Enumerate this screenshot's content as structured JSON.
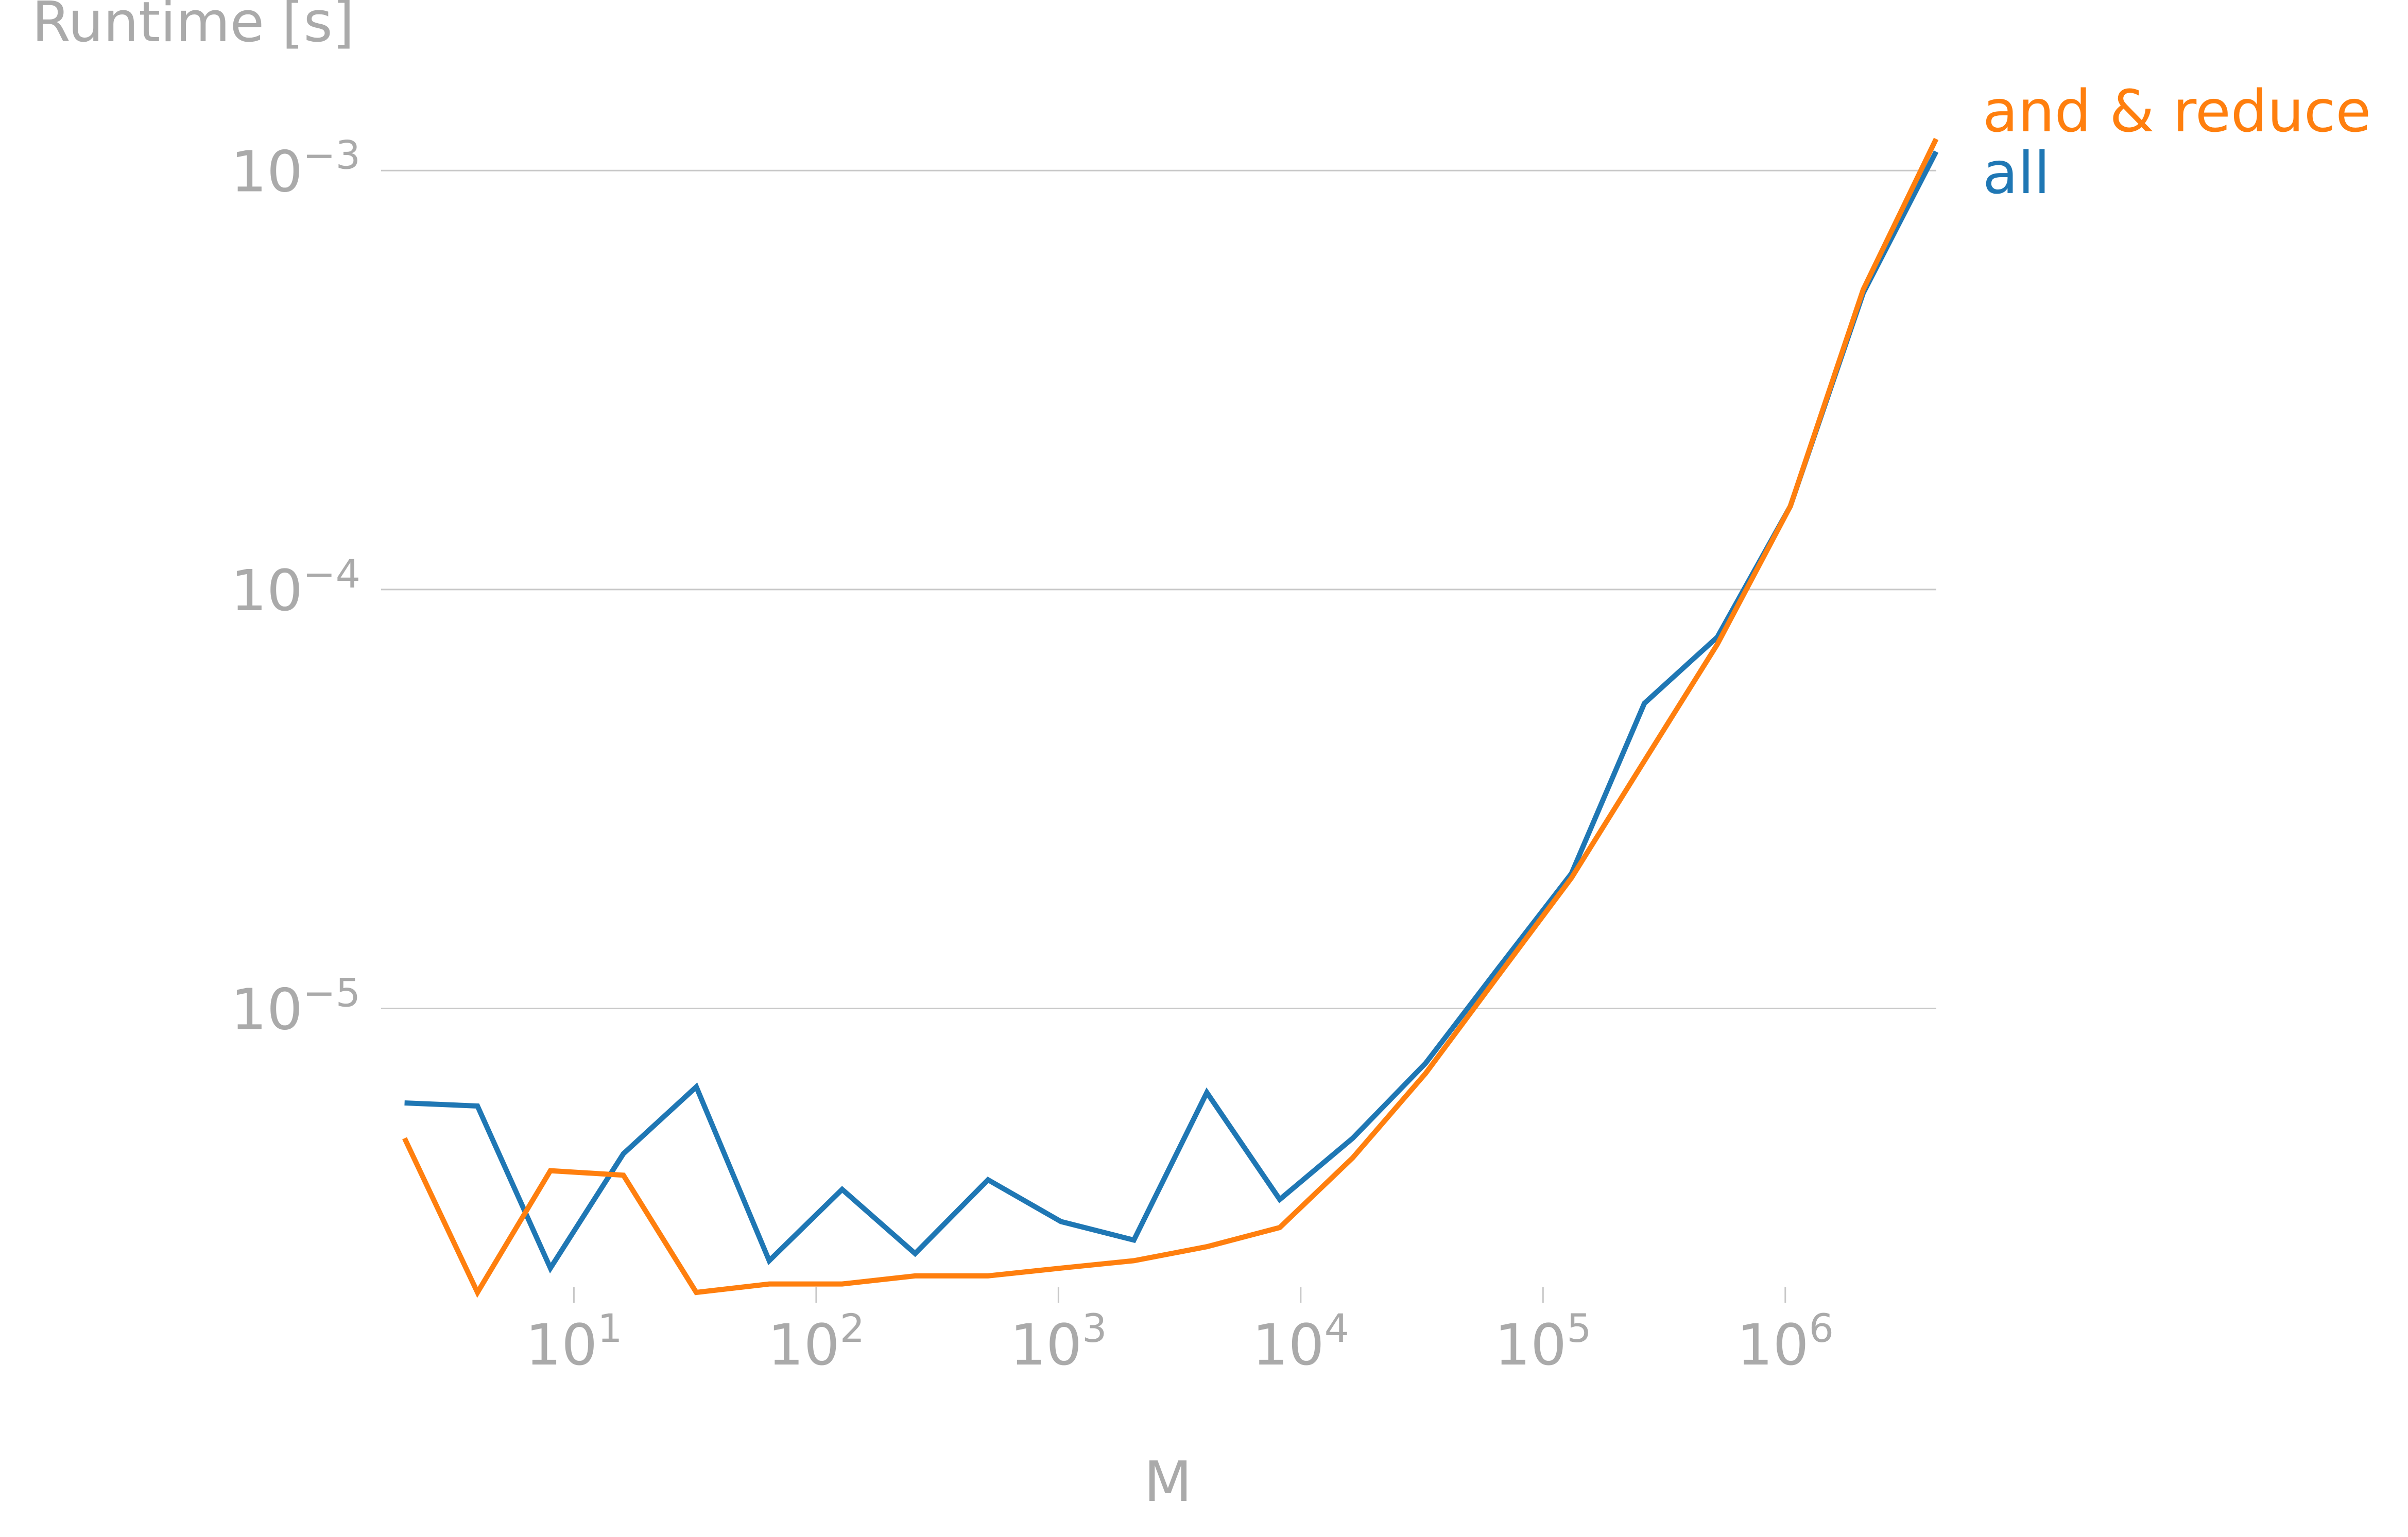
{
  "chart_data": {
    "type": "line",
    "ylabel": "Runtime [s]",
    "xlabel": "M",
    "x_scale": "log",
    "y_scale": "log",
    "xlim": [
      1.6,
      4200000
    ],
    "ylim": [
      2.1e-06,
      0.00145
    ],
    "x_ticks": [
      {
        "value": 10,
        "base": "10",
        "exp": "1"
      },
      {
        "value": 100,
        "base": "10",
        "exp": "2"
      },
      {
        "value": 1000,
        "base": "10",
        "exp": "3"
      },
      {
        "value": 10000,
        "base": "10",
        "exp": "4"
      },
      {
        "value": 100000,
        "base": "10",
        "exp": "5"
      },
      {
        "value": 1000000,
        "base": "10",
        "exp": "6"
      }
    ],
    "y_ticks": [
      {
        "value": 1e-05,
        "base": "10",
        "exp": "−5"
      },
      {
        "value": 0.0001,
        "base": "10",
        "exp": "−4"
      },
      {
        "value": 0.001,
        "base": "10",
        "exp": "−3"
      }
    ],
    "grid": "horizontal",
    "legend": "right, at line ends",
    "x": [
      2,
      4,
      8,
      16,
      32,
      64,
      128,
      256,
      512,
      1024,
      2048,
      4096,
      8192,
      16384,
      32768,
      65536,
      131072,
      262144,
      524288,
      1048576,
      2097152,
      4194304
    ],
    "series": [
      {
        "name": "all",
        "color": "#1f77b4",
        "values": [
          5.95e-06,
          5.85e-06,
          2.4e-06,
          4.5e-06,
          6.5e-06,
          2.5e-06,
          3.7e-06,
          2.6e-06,
          3.9e-06,
          3.1e-06,
          2.8e-06,
          6.3e-06,
          3.5e-06,
          4.9e-06,
          7.4e-06,
          1.25e-05,
          2.1e-05,
          5.35e-05,
          7.7e-05,
          0.000158,
          0.00051,
          0.00111
        ]
      },
      {
        "name": "and & reduce",
        "color": "#ff7f0e",
        "values": [
          4.9e-06,
          2.1e-06,
          4.1e-06,
          4e-06,
          2.1e-06,
          2.2e-06,
          2.2e-06,
          2.3e-06,
          2.3e-06,
          2.4e-06,
          2.5e-06,
          2.7e-06,
          3e-06,
          4.4e-06,
          7e-06,
          1.2e-05,
          2.05e-05,
          3.9e-05,
          7.4e-05,
          0.000158,
          0.00052,
          0.00119
        ]
      }
    ]
  }
}
